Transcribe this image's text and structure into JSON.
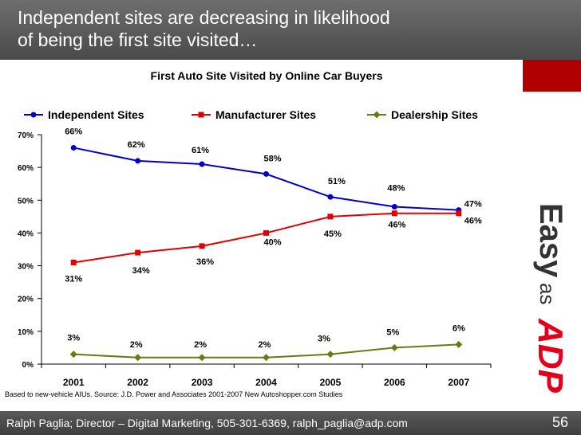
{
  "slide": {
    "title_line1": "Independent sites are decreasing in likelihood",
    "title_line2": "of being the first site visited…",
    "footnote": "Based to new-vehicle AIUs. Source: J.D. Power and Associates 2001-2007 New Autoshopper.com Studies",
    "footer": "Ralph Paglia; Director – Digital Marketing, 505-301-6369, ralph_paglia@adp.com",
    "page_number": "56"
  },
  "logo": {
    "text1": "Easy",
    "text2": "as",
    "text3": "ADP",
    "color": "#e2001a"
  },
  "chart_data": {
    "type": "line",
    "title": "First Auto Site Visited by Online Car Buyers",
    "categories": [
      "2001",
      "2002",
      "2003",
      "2004",
      "2005",
      "2006",
      "2007"
    ],
    "ylim": [
      0,
      70
    ],
    "yticks": [
      0,
      10,
      20,
      30,
      40,
      50,
      60,
      70
    ],
    "ytick_labels": [
      "0%",
      "10%",
      "20%",
      "30%",
      "40%",
      "50%",
      "60%",
      "70%"
    ],
    "legend_position": "top",
    "grid": false,
    "series": [
      {
        "name": "Independent Sites",
        "color": "#0000cc",
        "marker": "circle",
        "values": [
          66,
          62,
          61,
          58,
          51,
          48,
          47
        ],
        "labels": [
          "66%",
          "62%",
          "61%",
          "58%",
          "51%",
          "48%",
          "47%"
        ]
      },
      {
        "name": "Manufacturer Sites",
        "color": "#e00000",
        "marker": "square",
        "values": [
          31,
          34,
          36,
          40,
          45,
          46,
          46
        ],
        "labels": [
          "31%",
          "34%",
          "36%",
          "40%",
          "45%",
          "46%",
          "46%"
        ]
      },
      {
        "name": "Dealership Sites",
        "color": "#6b7a12",
        "marker": "diamond",
        "values": [
          3,
          2,
          2,
          2,
          3,
          5,
          6
        ],
        "labels": [
          "3%",
          "2%",
          "2%",
          "2%",
          "3%",
          "5%",
          "6%"
        ]
      }
    ]
  }
}
